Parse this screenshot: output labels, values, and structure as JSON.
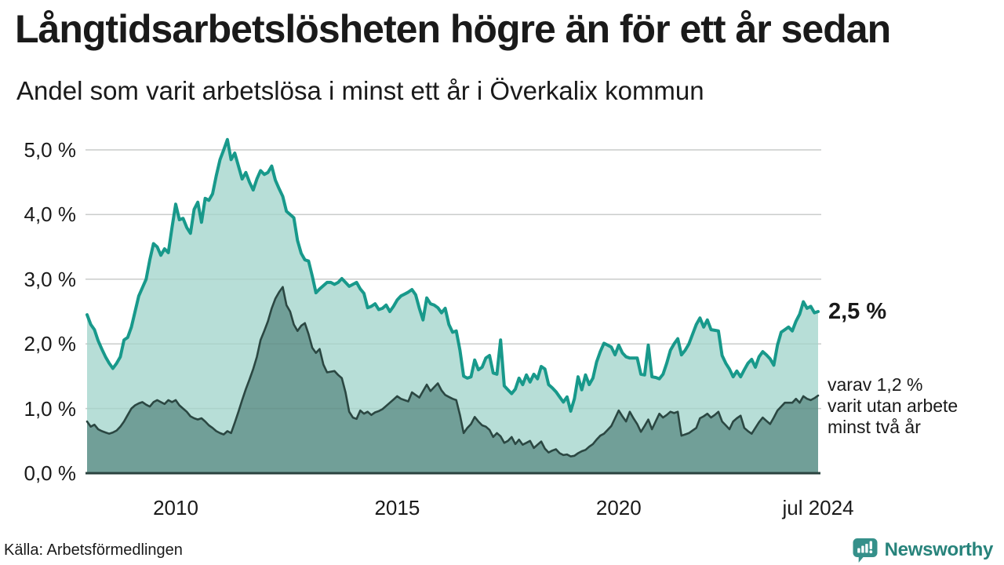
{
  "header": {
    "title": "Långtidsarbetslösheten högre än för ett år sedan",
    "subtitle": "Andel som varit arbetslösa i minst ett år i Överkalix kommun"
  },
  "annotations": {
    "latest_total": "2,5 %",
    "secondary_line1": "varav 1,2 %",
    "secondary_line2": "varit utan arbete",
    "secondary_line3": "minst två år"
  },
  "footer": {
    "source": "Källa: Arbetsförmedlingen",
    "brand": "Newsworthy"
  },
  "colors": {
    "accent_line": "#18998b",
    "accent_fill": "#b7ded7",
    "secondary_line": "#2b4742",
    "secondary_fill": "#719f98",
    "gridline": "#d8d8d8",
    "baseline": "#2b433f",
    "text": "#1a1a1a",
    "brand": "#27837b"
  },
  "chart_data": {
    "type": "area",
    "title": "Långtidsarbetslösheten högre än för ett år sedan",
    "subtitle": "Andel som varit arbetslösa i minst ett år i Överkalix kommun",
    "unit": "%",
    "frequency": "monthly",
    "x_domain": [
      "2008-01",
      "2024-07"
    ],
    "ylim": [
      0,
      5.4
    ],
    "grid": true,
    "legend": "none",
    "y_ticks": [
      {
        "label": "0,0 %",
        "value": 0
      },
      {
        "label": "1,0 %",
        "value": 1
      },
      {
        "label": "2,0 %",
        "value": 2
      },
      {
        "label": "3,0 %",
        "value": 3
      },
      {
        "label": "4,0 %",
        "value": 4
      },
      {
        "label": "5,0 %",
        "value": 5
      }
    ],
    "x_ticks": [
      {
        "label": "2010",
        "index": 24
      },
      {
        "label": "2015",
        "index": 84
      },
      {
        "label": "2020",
        "index": 144
      },
      {
        "label": "jul 2024",
        "index": 198
      }
    ],
    "series": [
      {
        "name": "Arbetslösa minst ett år",
        "latest_value": 2.5,
        "line_color": "#18998b",
        "fill_color": "#b7ded7",
        "values": [
          2.45,
          2.3,
          2.22,
          2.05,
          1.92,
          1.8,
          1.7,
          1.62,
          1.7,
          1.8,
          2.06,
          2.1,
          2.26,
          2.5,
          2.74,
          2.87,
          3.0,
          3.3,
          3.55,
          3.5,
          3.37,
          3.47,
          3.41,
          3.8,
          4.16,
          3.92,
          3.94,
          3.8,
          3.71,
          4.08,
          4.19,
          3.88,
          4.25,
          4.22,
          4.32,
          4.6,
          4.85,
          5.0,
          5.16,
          4.85,
          4.95,
          4.75,
          4.55,
          4.65,
          4.5,
          4.38,
          4.55,
          4.68,
          4.62,
          4.65,
          4.75,
          4.53,
          4.4,
          4.28,
          4.05,
          4.0,
          3.95,
          3.6,
          3.4,
          3.3,
          3.28,
          3.05,
          2.79,
          2.85,
          2.9,
          2.95,
          2.95,
          2.92,
          2.95,
          3.01,
          2.95,
          2.89,
          2.92,
          2.95,
          2.85,
          2.78,
          2.56,
          2.58,
          2.62,
          2.53,
          2.55,
          2.6,
          2.5,
          2.58,
          2.68,
          2.74,
          2.77,
          2.8,
          2.84,
          2.76,
          2.55,
          2.37,
          2.71,
          2.62,
          2.6,
          2.56,
          2.48,
          2.55,
          2.3,
          2.18,
          2.2,
          1.9,
          1.5,
          1.47,
          1.49,
          1.75,
          1.6,
          1.64,
          1.78,
          1.82,
          1.55,
          1.53,
          2.06,
          1.35,
          1.29,
          1.23,
          1.3,
          1.47,
          1.37,
          1.52,
          1.41,
          1.53,
          1.46,
          1.65,
          1.61,
          1.37,
          1.32,
          1.26,
          1.18,
          1.1,
          1.18,
          0.96,
          1.15,
          1.49,
          1.29,
          1.52,
          1.37,
          1.47,
          1.72,
          1.88,
          2.01,
          1.98,
          1.95,
          1.83,
          1.98,
          1.86,
          1.8,
          1.78,
          1.78,
          1.78,
          1.53,
          1.52,
          1.98,
          1.49,
          1.48,
          1.46,
          1.53,
          1.7,
          1.9,
          2.0,
          2.08,
          1.83,
          1.9,
          2.0,
          2.15,
          2.3,
          2.4,
          2.26,
          2.37,
          2.22,
          2.21,
          2.2,
          1.82,
          1.7,
          1.61,
          1.49,
          1.58,
          1.49,
          1.6,
          1.7,
          1.76,
          1.64,
          1.8,
          1.88,
          1.83,
          1.77,
          1.67,
          1.98,
          2.18,
          2.22,
          2.26,
          2.2,
          2.35,
          2.46,
          2.65,
          2.55,
          2.58,
          2.48,
          2.5
        ]
      },
      {
        "name": "varav utan arbete minst två år",
        "latest_value": 1.2,
        "line_color": "#2b4742",
        "fill_color": "#719f98",
        "values": [
          0.8,
          0.72,
          0.75,
          0.68,
          0.65,
          0.63,
          0.61,
          0.63,
          0.66,
          0.72,
          0.8,
          0.9,
          1.0,
          1.05,
          1.08,
          1.1,
          1.06,
          1.03,
          1.1,
          1.13,
          1.1,
          1.07,
          1.13,
          1.1,
          1.13,
          1.05,
          1.0,
          0.95,
          0.88,
          0.85,
          0.83,
          0.85,
          0.8,
          0.74,
          0.7,
          0.65,
          0.62,
          0.6,
          0.65,
          0.62,
          0.78,
          0.95,
          1.13,
          1.3,
          1.45,
          1.61,
          1.8,
          2.06,
          2.2,
          2.35,
          2.55,
          2.7,
          2.8,
          2.88,
          2.6,
          2.5,
          2.3,
          2.2,
          2.28,
          2.32,
          2.15,
          1.94,
          1.86,
          1.92,
          1.68,
          1.56,
          1.57,
          1.58,
          1.52,
          1.47,
          1.25,
          0.95,
          0.86,
          0.84,
          0.97,
          0.92,
          0.95,
          0.9,
          0.94,
          0.96,
          0.99,
          1.04,
          1.09,
          1.14,
          1.19,
          1.15,
          1.13,
          1.11,
          1.25,
          1.21,
          1.17,
          1.27,
          1.37,
          1.27,
          1.33,
          1.39,
          1.28,
          1.21,
          1.18,
          1.15,
          1.13,
          0.9,
          0.62,
          0.7,
          0.76,
          0.87,
          0.8,
          0.74,
          0.72,
          0.67,
          0.56,
          0.62,
          0.57,
          0.47,
          0.5,
          0.56,
          0.45,
          0.52,
          0.44,
          0.47,
          0.5,
          0.39,
          0.44,
          0.49,
          0.38,
          0.32,
          0.35,
          0.37,
          0.31,
          0.28,
          0.29,
          0.26,
          0.27,
          0.31,
          0.34,
          0.36,
          0.41,
          0.45,
          0.52,
          0.58,
          0.61,
          0.67,
          0.73,
          0.85,
          0.97,
          0.88,
          0.8,
          0.95,
          0.85,
          0.76,
          0.64,
          0.73,
          0.83,
          0.68,
          0.8,
          0.92,
          0.86,
          0.9,
          0.95,
          0.93,
          0.95,
          0.58,
          0.6,
          0.62,
          0.66,
          0.7,
          0.85,
          0.88,
          0.92,
          0.86,
          0.9,
          0.95,
          0.8,
          0.74,
          0.68,
          0.8,
          0.85,
          0.89,
          0.7,
          0.65,
          0.61,
          0.7,
          0.79,
          0.86,
          0.81,
          0.76,
          0.86,
          0.97,
          1.03,
          1.09,
          1.09,
          1.09,
          1.15,
          1.09,
          1.19,
          1.15,
          1.13,
          1.16,
          1.2
        ]
      }
    ]
  }
}
